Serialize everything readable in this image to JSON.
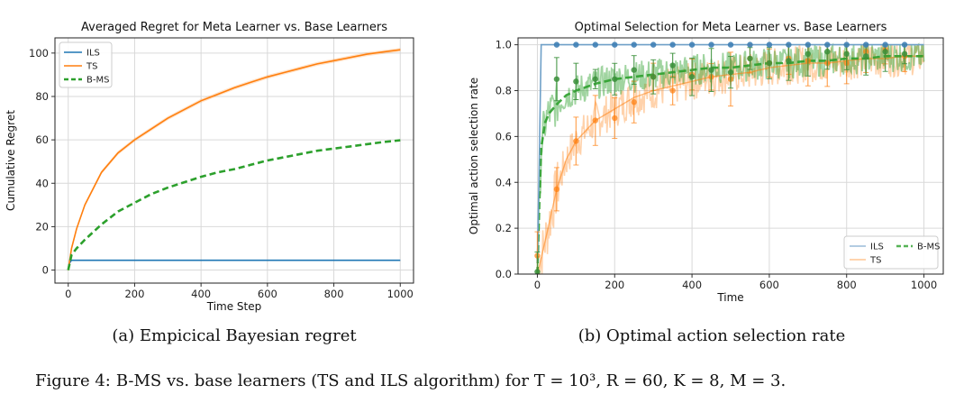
{
  "figure": {
    "caption_label": "Figure 4:",
    "caption_text": "B-MS vs. base learners (TS and ILS algorithm) for T = 10³, R = 60, K = 8, M = 3.",
    "subcaption_a": "(a) Empicical Bayesian regret",
    "subcaption_b": "(b) Optimal action selection rate"
  },
  "colors": {
    "ils": "#1f77b4",
    "ts": "#ff7f0e",
    "bms": "#2ca02c",
    "ils_b": "#6fa0c8"
  },
  "chart_data": [
    {
      "type": "line",
      "title": "Averaged Regret for Meta Learner vs. Base Learners",
      "xlabel": "Time Step",
      "ylabel": "Cumulative Regret",
      "xlim": [
        -40,
        1040
      ],
      "ylim": [
        -6,
        107
      ],
      "xticks": [
        0,
        200,
        400,
        600,
        800,
        1000
      ],
      "yticks": [
        0,
        20,
        40,
        60,
        80,
        100
      ],
      "grid": true,
      "legend_position": "top-left",
      "series": [
        {
          "name": "ILS",
          "style": "solid",
          "x": [
            0,
            5,
            10,
            20,
            50,
            1000
          ],
          "y": [
            1,
            3.5,
            4.5,
            4.5,
            4.5,
            4.5
          ]
        },
        {
          "name": "TS",
          "style": "solid",
          "x": [
            0,
            10,
            25,
            50,
            100,
            150,
            200,
            250,
            300,
            350,
            400,
            450,
            500,
            550,
            600,
            650,
            700,
            750,
            800,
            850,
            900,
            950,
            1000
          ],
          "y": [
            0,
            10,
            19,
            30,
            45,
            54,
            60,
            65,
            70,
            74,
            78,
            81,
            84,
            86.5,
            89,
            91,
            93,
            95,
            96.5,
            98,
            99.5,
            100.5,
            101.5
          ]
        },
        {
          "name": "B-MS",
          "style": "dashed",
          "x": [
            0,
            10,
            25,
            50,
            100,
            150,
            200,
            250,
            300,
            350,
            400,
            450,
            500,
            550,
            600,
            650,
            700,
            750,
            800,
            850,
            900,
            950,
            1000
          ],
          "y": [
            0,
            7,
            10,
            14,
            21,
            27,
            31,
            35,
            38,
            40.5,
            43,
            45,
            46.5,
            48.5,
            50.5,
            52,
            53.5,
            55,
            56,
            57,
            58,
            59,
            59.8
          ]
        }
      ]
    },
    {
      "type": "line",
      "title": "Optimal Selection for Meta Learner vs. Base Learners",
      "xlabel": "Time",
      "ylabel": "Optimal action selection rate",
      "xlim": [
        -50,
        1050
      ],
      "ylim": [
        0,
        1.03
      ],
      "xticks": [
        0,
        200,
        400,
        600,
        800,
        1000
      ],
      "yticks": [
        0.0,
        0.2,
        0.4,
        0.6,
        0.8,
        1.0
      ],
      "grid": true,
      "legend_position": "lower-right",
      "series": [
        {
          "name": "ILS",
          "style": "solid",
          "x": [
            0,
            5,
            10,
            1000
          ],
          "y": [
            0.05,
            0.5,
            1.0,
            1.0
          ],
          "markers_x": [
            50,
            100,
            150,
            200,
            250,
            300,
            350,
            400,
            450,
            500,
            550,
            600,
            650,
            700,
            750,
            800,
            850,
            900,
            950
          ],
          "markers_y": [
            1,
            1,
            1,
            1,
            1,
            1,
            1,
            1,
            1,
            1,
            1,
            1,
            1,
            1,
            1,
            1,
            1,
            1,
            1
          ]
        },
        {
          "name": "TS",
          "style": "solid",
          "x": [
            0,
            25,
            50,
            75,
            100,
            150,
            200,
            250,
            300,
            350,
            400,
            450,
            500,
            550,
            600,
            650,
            700,
            750,
            800,
            850,
            900,
            950,
            1000
          ],
          "y": [
            0.0,
            0.18,
            0.37,
            0.5,
            0.58,
            0.67,
            0.72,
            0.77,
            0.8,
            0.82,
            0.84,
            0.86,
            0.87,
            0.88,
            0.9,
            0.91,
            0.92,
            0.92,
            0.93,
            0.94,
            0.94,
            0.95,
            0.95
          ],
          "markers_x": [
            0,
            50,
            100,
            150,
            200,
            250,
            300,
            350,
            400,
            450,
            500,
            550,
            600,
            650,
            700,
            750,
            800,
            850,
            900,
            950
          ],
          "markers_y": [
            0.08,
            0.37,
            0.58,
            0.67,
            0.68,
            0.75,
            0.86,
            0.8,
            0.87,
            0.86,
            0.85,
            0.94,
            0.92,
            0.94,
            0.93,
            0.92,
            0.92,
            0.97,
            0.98,
            0.95
          ]
        },
        {
          "name": "B-MS",
          "style": "dashed",
          "x": [
            0,
            5,
            10,
            20,
            30,
            50,
            75,
            100,
            150,
            200,
            250,
            300,
            350,
            400,
            450,
            500,
            550,
            600,
            650,
            700,
            750,
            800,
            850,
            900,
            950,
            1000
          ],
          "y": [
            0.0,
            0.3,
            0.55,
            0.66,
            0.7,
            0.74,
            0.78,
            0.8,
            0.83,
            0.85,
            0.86,
            0.87,
            0.88,
            0.89,
            0.9,
            0.9,
            0.91,
            0.92,
            0.92,
            0.93,
            0.93,
            0.94,
            0.94,
            0.95,
            0.95,
            0.95
          ],
          "markers_x": [
            0,
            50,
            100,
            150,
            200,
            250,
            300,
            350,
            400,
            450,
            500,
            550,
            600,
            650,
            700,
            750,
            800,
            850,
            900,
            950
          ],
          "markers_y": [
            0.01,
            0.85,
            0.84,
            0.85,
            0.85,
            0.89,
            0.86,
            0.91,
            0.86,
            0.89,
            0.88,
            0.94,
            0.92,
            0.93,
            0.96,
            0.97,
            0.96,
            0.95,
            0.97,
            0.96
          ]
        }
      ]
    }
  ]
}
